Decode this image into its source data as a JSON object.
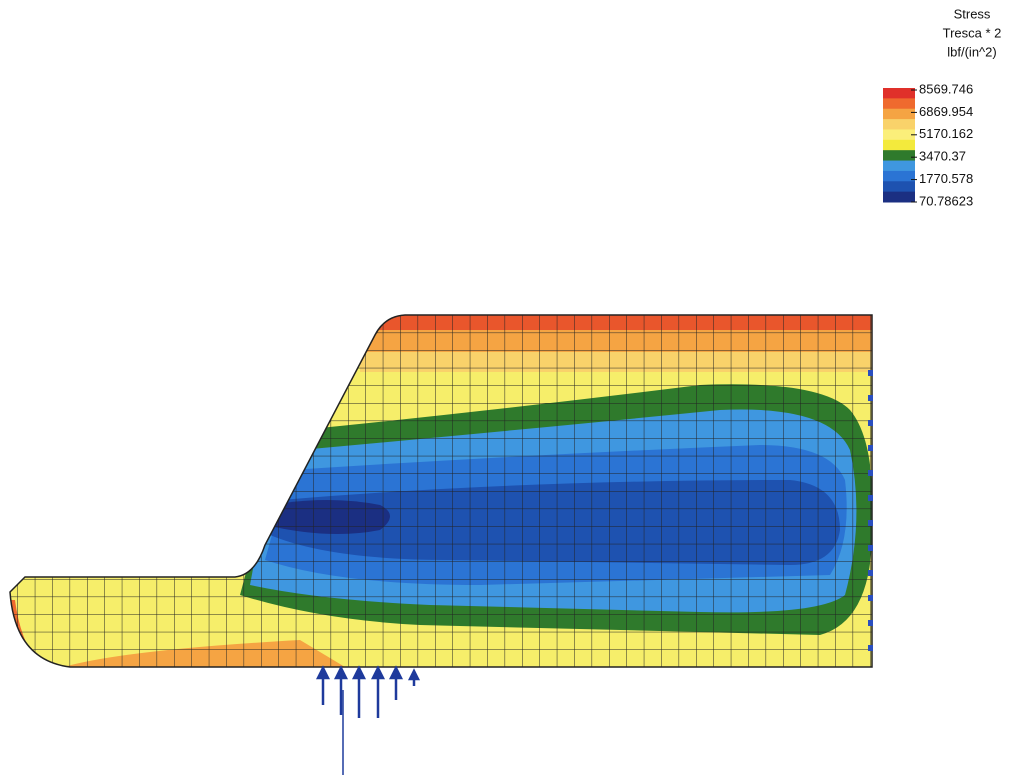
{
  "legend": {
    "title": [
      "Stress",
      "Tresca * 2",
      "lbf/(in^2)"
    ],
    "labels": [
      "8569.746",
      "6869.954",
      "5170.162",
      "3470.37",
      "1770.578",
      "70.78623"
    ],
    "colors": [
      "#e0302a",
      "#ef6a2e",
      "#f5a443",
      "#f9d26a",
      "#fbef7a",
      "#f3ea3c",
      "#2f7a2c",
      "#3f97e0",
      "#2b74d4",
      "#1e52b0",
      "#1b2f82"
    ]
  }
}
